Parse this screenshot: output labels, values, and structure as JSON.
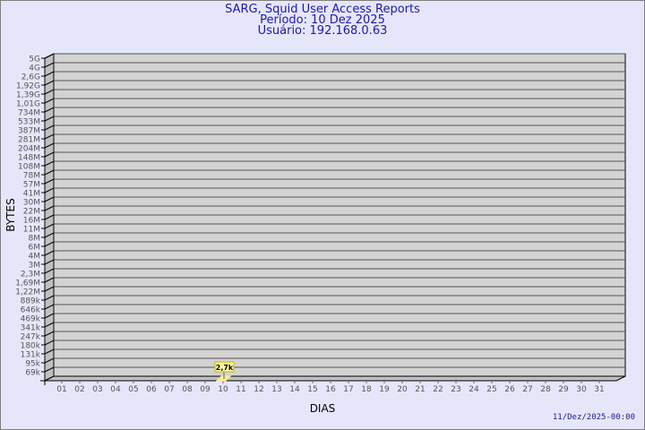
{
  "header": {
    "title": "SARG, Squid User Access Reports",
    "period": "Período: 10 Dez 2025",
    "user": "Usuário: 192.168.0.63"
  },
  "footer": {
    "timestamp": "11/Dez/2025-00:00"
  },
  "colors": {
    "background": "#e6e6fa",
    "plot": "#d3d3d3",
    "bar": "#ffe89a",
    "title": "#1a1aa6"
  },
  "chart_data": {
    "type": "bar",
    "xlabel": "DIAS",
    "ylabel": "BYTES",
    "y_scale": "log",
    "grid": true,
    "y_tick_labels": [
      "5G",
      "4G",
      "2,6G",
      "1,92G",
      "1,39G",
      "1,01G",
      "734M",
      "533M",
      "387M",
      "281M",
      "204M",
      "148M",
      "108M",
      "78M",
      "57M",
      "41M",
      "30M",
      "22M",
      "16M",
      "11M",
      "8M",
      "6M",
      "4M",
      "3M",
      "2,3M",
      "1,69M",
      "1,22M",
      "889k",
      "646k",
      "469k",
      "341k",
      "247k",
      "180k",
      "131k",
      "95k",
      "69k"
    ],
    "categories": [
      "01",
      "02",
      "03",
      "04",
      "05",
      "06",
      "07",
      "08",
      "09",
      "10",
      "11",
      "12",
      "13",
      "14",
      "15",
      "16",
      "17",
      "18",
      "19",
      "20",
      "21",
      "22",
      "23",
      "24",
      "25",
      "26",
      "27",
      "28",
      "29",
      "30",
      "31"
    ],
    "values": [
      null,
      null,
      null,
      null,
      null,
      null,
      null,
      null,
      null,
      2700,
      null,
      null,
      null,
      null,
      null,
      null,
      null,
      null,
      null,
      null,
      null,
      null,
      null,
      null,
      null,
      null,
      null,
      null,
      null,
      null,
      null
    ],
    "data_labels": [
      {
        "category": "10",
        "text": "2,7k"
      }
    ]
  }
}
